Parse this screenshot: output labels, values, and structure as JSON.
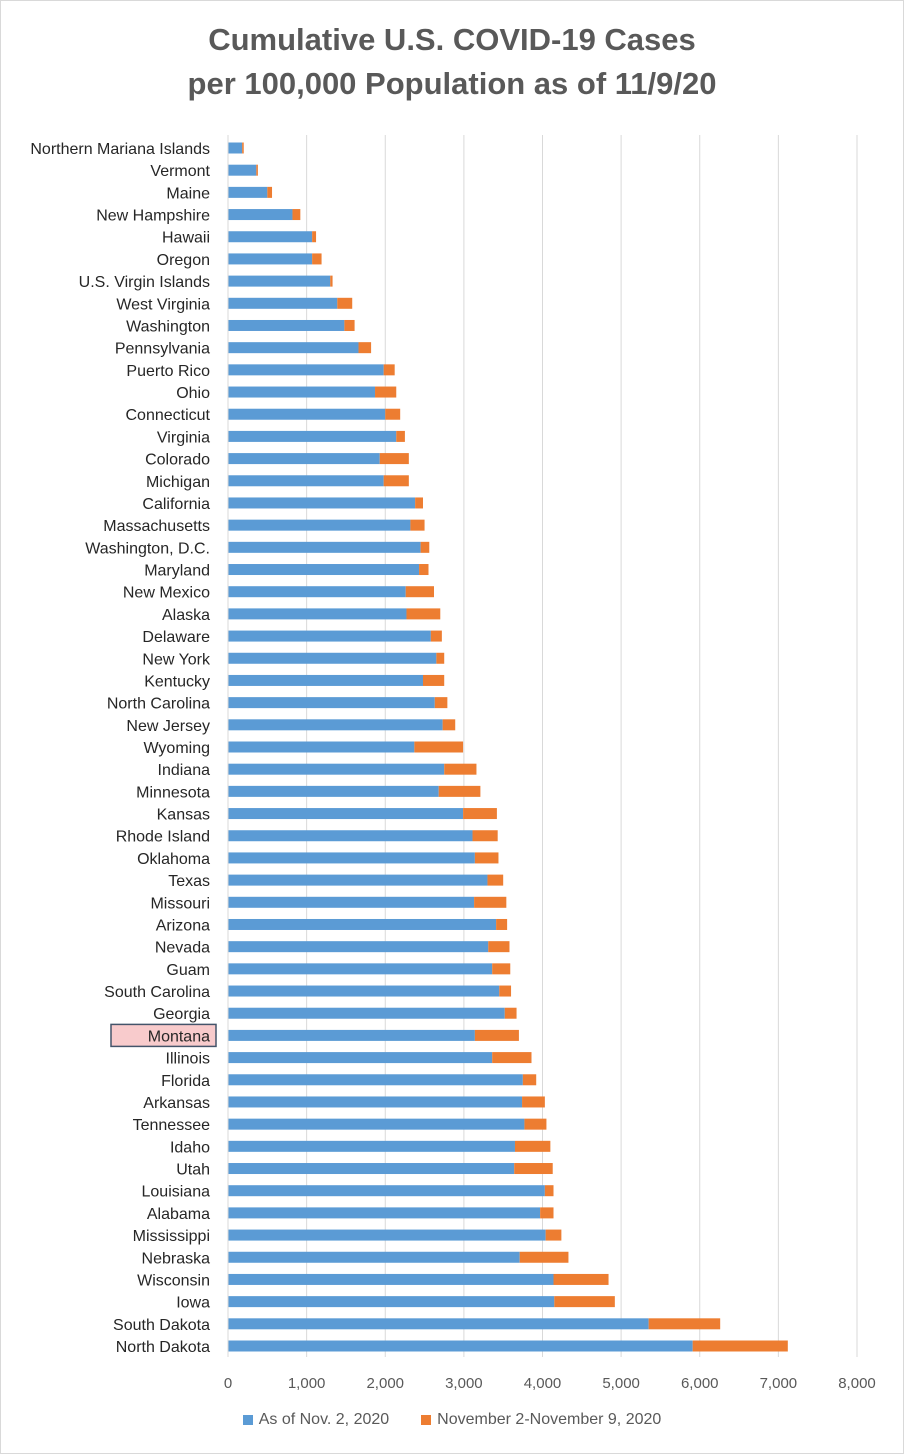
{
  "chart_data": {
    "type": "bar",
    "orientation": "horizontal",
    "stacked": true,
    "title_lines": [
      "Cumulative U.S. COVID-19 Cases",
      "per 100,000 Population as of 11/9/20"
    ],
    "xlabel": "",
    "ylabel": "",
    "xlim": [
      0,
      8000
    ],
    "xticks": [
      "0",
      "1,000",
      "2,000",
      "3,000",
      "4,000",
      "5,000",
      "6,000",
      "7,000",
      "8,000"
    ],
    "grid": "vertical",
    "legend_position": "bottom",
    "highlighted_category": "Montana",
    "colors": {
      "base": "#5b9bd5",
      "increment": "#ed7d31",
      "highlight_fill": "#f8cbcc",
      "highlight_border": "#44546a"
    },
    "categories": [
      "Northern Mariana Islands",
      "Vermont",
      "Maine",
      "New Hampshire",
      "Hawaii",
      "Oregon",
      "U.S. Virgin Islands",
      "West Virginia",
      "Washington",
      "Pennsylvania",
      "Puerto Rico",
      "Ohio",
      "Connecticut",
      "Virginia",
      "Colorado",
      "Michigan",
      "California",
      "Massachusetts",
      "Washington, D.C.",
      "Maryland",
      "New Mexico",
      "Alaska",
      "Delaware",
      "New York",
      "Kentucky",
      "North Carolina",
      "New Jersey",
      "Wyoming",
      "Indiana",
      "Minnesota",
      "Kansas",
      "Rhode Island",
      "Oklahoma",
      "Texas",
      "Missouri",
      "Arizona",
      "Nevada",
      "Guam",
      "South Carolina",
      "Georgia",
      "Montana",
      "Illinois",
      "Florida",
      "Arkansas",
      "Tennessee",
      "Idaho",
      "Utah",
      "Louisiana",
      "Alabama",
      "Mississippi",
      "Nebraska",
      "Wisconsin",
      "Iowa",
      "South Dakota",
      "North Dakota"
    ],
    "series": [
      {
        "name": "As of Nov. 2, 2020",
        "values": [
          180,
          360,
          500,
          820,
          1070,
          1070,
          1300,
          1390,
          1480,
          1660,
          1980,
          1870,
          2000,
          2140,
          1930,
          1980,
          2380,
          2320,
          2450,
          2430,
          2260,
          2270,
          2580,
          2650,
          2480,
          2630,
          2730,
          2370,
          2750,
          2680,
          2990,
          3110,
          3140,
          3300,
          3130,
          3410,
          3310,
          3360,
          3450,
          3520,
          3140,
          3360,
          3750,
          3740,
          3770,
          3650,
          3640,
          4030,
          3970,
          4040,
          3710,
          4140,
          4150,
          5350,
          5910
        ]
      },
      {
        "name": "November 2-November 9, 2020",
        "values": [
          20,
          20,
          60,
          100,
          50,
          120,
          30,
          190,
          130,
          160,
          140,
          270,
          190,
          110,
          370,
          320,
          100,
          180,
          110,
          120,
          360,
          430,
          140,
          100,
          270,
          160,
          160,
          620,
          410,
          530,
          430,
          320,
          300,
          200,
          410,
          140,
          270,
          230,
          150,
          150,
          560,
          500,
          170,
          290,
          280,
          450,
          490,
          110,
          170,
          200,
          620,
          700,
          770,
          910,
          1210
        ]
      }
    ]
  }
}
